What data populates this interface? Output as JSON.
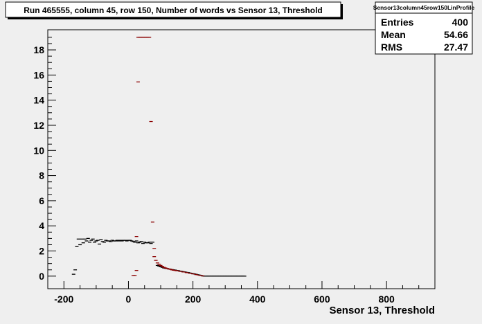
{
  "chart_data": {
    "type": "scatter",
    "title": "Run 465555, column 45, row 150, Number of words vs Sensor 13, Threshold",
    "xlabel": "Sensor 13, Threshold",
    "ylabel": "",
    "xlim": [
      -250,
      950
    ],
    "ylim": [
      -1.0,
      19.6
    ],
    "xticks": [
      -200,
      0,
      200,
      400,
      600,
      800
    ],
    "yticks": [
      0,
      2,
      4,
      6,
      8,
      10,
      12,
      14,
      16,
      18
    ],
    "grid": false,
    "stats_box": {
      "name": "Sensor13column45row150LinProfile",
      "rows": [
        {
          "label": "Entries",
          "value": "400"
        },
        {
          "label": "Mean",
          "value": "54.66"
        },
        {
          "label": "RMS",
          "value": "27.47"
        }
      ]
    },
    "series": [
      {
        "style": "black",
        "points": [
          [
            -170,
            0.15
          ],
          [
            -165,
            0.5
          ],
          [
            -160,
            2.35
          ],
          [
            -155,
            2.95
          ],
          [
            -150,
            2.5
          ],
          [
            -145,
            2.95
          ],
          [
            -140,
            2.65
          ],
          [
            -135,
            2.95
          ],
          [
            -130,
            2.8
          ],
          [
            -125,
            3.0
          ],
          [
            -120,
            2.7
          ],
          [
            -115,
            2.85
          ],
          [
            -110,
            2.95
          ],
          [
            -105,
            2.7
          ],
          [
            -100,
            2.8
          ],
          [
            -95,
            2.85
          ],
          [
            -90,
            2.55
          ],
          [
            -85,
            2.9
          ],
          [
            -80,
            2.75
          ],
          [
            -75,
            2.7
          ],
          [
            -70,
            2.85
          ],
          [
            -65,
            2.8
          ],
          [
            -60,
            2.8
          ],
          [
            -55,
            2.75
          ],
          [
            -50,
            2.85
          ],
          [
            -45,
            2.8
          ],
          [
            -40,
            2.8
          ],
          [
            -35,
            2.85
          ],
          [
            -30,
            2.8
          ],
          [
            -25,
            2.85
          ],
          [
            -20,
            2.8
          ],
          [
            -15,
            2.85
          ],
          [
            -10,
            2.85
          ],
          [
            -5,
            2.8
          ],
          [
            0,
            2.85
          ],
          [
            5,
            2.85
          ],
          [
            10,
            2.8
          ],
          [
            15,
            2.75
          ],
          [
            20,
            2.7
          ],
          [
            25,
            2.8
          ],
          [
            30,
            2.65
          ],
          [
            35,
            2.7
          ],
          [
            40,
            2.75
          ],
          [
            45,
            2.6
          ],
          [
            50,
            2.7
          ],
          [
            55,
            2.65
          ],
          [
            60,
            2.65
          ],
          [
            65,
            2.7
          ],
          [
            70,
            2.6
          ],
          [
            75,
            2.7
          ],
          [
            90,
            0.85
          ],
          [
            95,
            0.8
          ],
          [
            100,
            0.75
          ],
          [
            105,
            0.7
          ],
          [
            110,
            0.65
          ],
          [
            115,
            0.62
          ],
          [
            120,
            0.6
          ],
          [
            125,
            0.57
          ],
          [
            130,
            0.55
          ],
          [
            135,
            0.52
          ],
          [
            140,
            0.5
          ],
          [
            145,
            0.48
          ],
          [
            150,
            0.45
          ],
          [
            155,
            0.43
          ],
          [
            160,
            0.4
          ],
          [
            165,
            0.38
          ],
          [
            170,
            0.35
          ],
          [
            175,
            0.33
          ],
          [
            180,
            0.3
          ],
          [
            185,
            0.28
          ],
          [
            190,
            0.25
          ],
          [
            195,
            0.22
          ],
          [
            200,
            0.2
          ],
          [
            205,
            0.17
          ],
          [
            210,
            0.14
          ],
          [
            215,
            0.11
          ],
          [
            220,
            0.08
          ],
          [
            225,
            0.05
          ],
          [
            230,
            0.02
          ],
          [
            235,
            0.0
          ],
          [
            240,
            0.0
          ],
          [
            245,
            0.0
          ],
          [
            250,
            0.0
          ],
          [
            255,
            0.0
          ],
          [
            260,
            0.0
          ],
          [
            265,
            0.0
          ],
          [
            270,
            0.0
          ],
          [
            275,
            0.0
          ],
          [
            280,
            0.0
          ],
          [
            285,
            0.0
          ],
          [
            290,
            0.0
          ],
          [
            295,
            0.0
          ],
          [
            300,
            0.0
          ],
          [
            305,
            0.0
          ],
          [
            310,
            0.0
          ],
          [
            315,
            0.0
          ],
          [
            320,
            0.0
          ],
          [
            325,
            0.0
          ],
          [
            330,
            0.0
          ],
          [
            335,
            0.0
          ],
          [
            340,
            0.0
          ],
          [
            345,
            0.0
          ],
          [
            350,
            0.0
          ],
          [
            355,
            0.0
          ],
          [
            360,
            0.0
          ]
        ]
      },
      {
        "style": "darkred",
        "points": [
          [
            15,
            0.05
          ],
          [
            20,
            0.05
          ],
          [
            25,
            0.45
          ],
          [
            25,
            3.15
          ],
          [
            30,
            15.45
          ],
          [
            30,
            19.0
          ],
          [
            35,
            19.0
          ],
          [
            40,
            19.0
          ],
          [
            45,
            19.0
          ],
          [
            50,
            19.0
          ],
          [
            55,
            19.0
          ],
          [
            60,
            19.0
          ],
          [
            65,
            19.0
          ],
          [
            70,
            12.3
          ],
          [
            75,
            4.3
          ],
          [
            80,
            2.2
          ],
          [
            80,
            1.55
          ],
          [
            85,
            1.25
          ],
          [
            90,
            1.05
          ],
          [
            95,
            0.95
          ],
          [
            100,
            0.85
          ],
          [
            105,
            0.78
          ],
          [
            110,
            0.7
          ],
          [
            115,
            0.65
          ],
          [
            120,
            0.6
          ],
          [
            125,
            0.57
          ],
          [
            130,
            0.54
          ],
          [
            135,
            0.5
          ],
          [
            140,
            0.47
          ],
          [
            145,
            0.45
          ],
          [
            150,
            0.43
          ],
          [
            160,
            0.38
          ],
          [
            170,
            0.33
          ],
          [
            180,
            0.28
          ],
          [
            190,
            0.23
          ],
          [
            200,
            0.18
          ],
          [
            210,
            0.12
          ],
          [
            220,
            0.07
          ],
          [
            230,
            0.02
          ]
        ]
      }
    ]
  }
}
